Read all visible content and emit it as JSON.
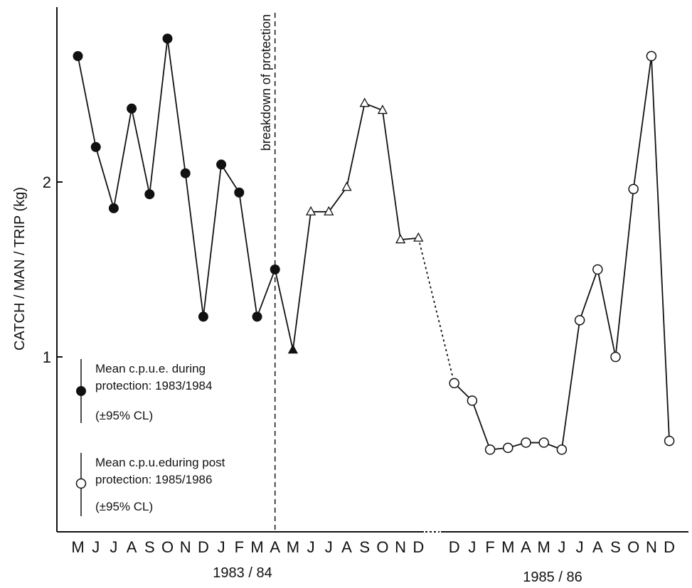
{
  "chart_data": {
    "type": "line",
    "title": "",
    "xlabel": "",
    "ylabel": "CATCH / MAN / TRIP  (kg)",
    "ylim": [
      0,
      3
    ],
    "yticks": [
      1,
      2
    ],
    "year_labels": [
      "1983 / 84",
      "1985 / 86"
    ],
    "month_ticks_1": [
      "M",
      "J",
      "J",
      "A",
      "S",
      "O",
      "N",
      "D",
      "J",
      "F",
      "M",
      "A",
      "M",
      "J",
      "J",
      "A",
      "S",
      "O",
      "N",
      "D"
    ],
    "month_ticks_2": [
      "D",
      "J",
      "F",
      "M",
      "A",
      "M",
      "J",
      "J",
      "A",
      "S",
      "O",
      "N",
      "D"
    ],
    "annotation": "breakdown of protection",
    "series": [
      {
        "marker": "filled-circle",
        "points": [
          [
            0,
            2.72
          ],
          [
            1,
            2.2
          ],
          [
            2,
            1.85
          ],
          [
            3,
            2.42
          ],
          [
            4,
            1.93
          ],
          [
            5,
            2.82
          ],
          [
            6,
            2.05
          ],
          [
            7,
            1.23
          ],
          [
            8,
            2.1
          ],
          [
            9,
            1.94
          ],
          [
            10,
            1.23
          ],
          [
            11,
            1.5
          ]
        ]
      },
      {
        "marker": "filled-triangle",
        "points": [
          [
            11,
            1.5
          ],
          [
            12,
            1.04
          ]
        ]
      },
      {
        "marker": "open-triangle",
        "points": [
          [
            12,
            1.04
          ],
          [
            13,
            1.83
          ],
          [
            14,
            1.83
          ],
          [
            15,
            1.97
          ],
          [
            16,
            2.45
          ],
          [
            17,
            2.41
          ],
          [
            18,
            1.67
          ],
          [
            19,
            1.68
          ]
        ]
      },
      {
        "marker": "open-circle",
        "points": [
          [
            21,
            0.85
          ],
          [
            22,
            0.75
          ],
          [
            23,
            0.47
          ],
          [
            24,
            0.48
          ],
          [
            25,
            0.51
          ],
          [
            26,
            0.51
          ],
          [
            27,
            0.47
          ],
          [
            28,
            1.21
          ],
          [
            29,
            1.5
          ],
          [
            30,
            1.0
          ],
          [
            31,
            1.96
          ],
          [
            32,
            2.72
          ],
          [
            33,
            0.52
          ]
        ]
      }
    ],
    "gap_connector": [
      [
        19,
        1.68
      ],
      [
        21,
        0.85
      ]
    ],
    "legend": [
      {
        "marker": "filled-circle",
        "lines": [
          "Mean c.p.u.e. during",
          "protection: 1983/1984"
        ],
        "cl": "(±95% CL)"
      },
      {
        "marker": "open-circle",
        "lines": [
          "Mean c.p.u.eduring post",
          "protection: 1985/1986"
        ],
        "cl": "(±95% CL)"
      }
    ],
    "grid": false,
    "legend_placement": "bottom-left"
  }
}
